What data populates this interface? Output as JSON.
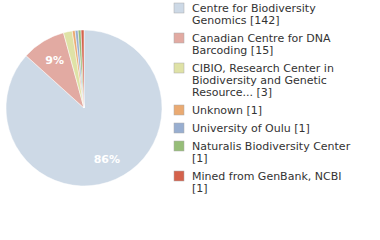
{
  "chart_data": {
    "type": "pie",
    "categories": [
      "Centre for Biodiversity Genomics [142]",
      "Canadian Centre for DNA Barcoding [15]",
      "CIBIO, Research Center in Biodiversity and Genetic Resource... [3]",
      "Unknown [1]",
      "University of Oulu [1]",
      "Naturalis Biodiversity Center [1]",
      "Mined from GenBank, NCBI [1]"
    ],
    "values": [
      86,
      9,
      1.8,
      0.6,
      0.6,
      0.6,
      0.6
    ],
    "colors": [
      "#cdd9e6",
      "#e2aaa2",
      "#dfe2a6",
      "#eaaa72",
      "#98aed0",
      "#96bd78",
      "#d4624c"
    ],
    "data_labels": true,
    "value_labels": [
      "86%",
      "9%",
      null,
      null,
      null,
      null,
      null
    ]
  }
}
